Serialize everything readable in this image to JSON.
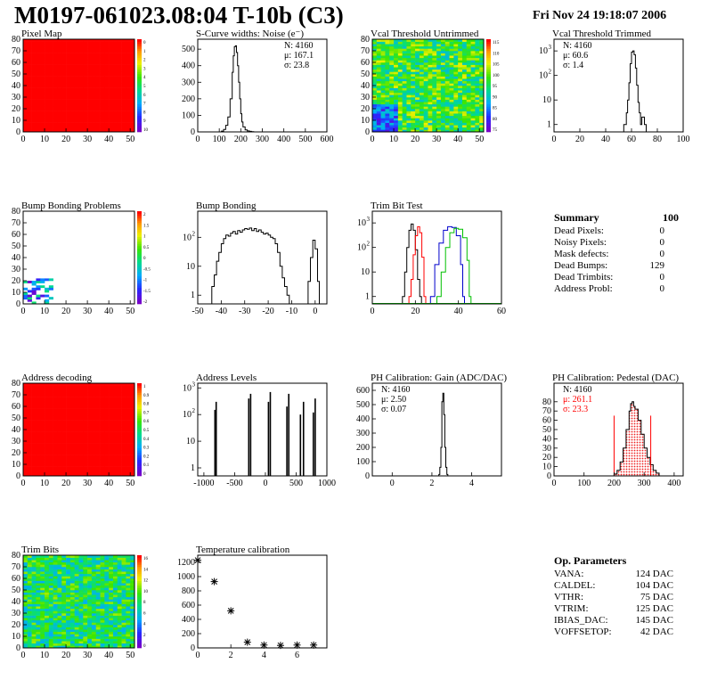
{
  "header": {
    "title": "M0197-061023.08:04 T-10b (C3)",
    "datetime": "Fri Nov 24 19:18:07 2006"
  },
  "colors": {
    "red": "#ff0000",
    "green": "#00c000",
    "blue": "#0000cc",
    "fill_hatch": "#ee2222"
  },
  "panels": [
    {
      "id": "pixel-map",
      "chart_data": {
        "type": "heatmap",
        "title": "Pixel Map",
        "xlim": [
          0,
          52
        ],
        "ylim": [
          0,
          80
        ],
        "xticks": [
          0,
          10,
          20,
          30,
          40,
          50
        ],
        "yticks": [
          0,
          10,
          20,
          30,
          40,
          50,
          60,
          70,
          80
        ],
        "uniform_value": 10,
        "zlim": [
          0,
          10
        ],
        "zticks": [
          "0",
          "1",
          "2",
          "3",
          "4",
          "5",
          "6",
          "7",
          "8",
          "9",
          "10"
        ]
      }
    },
    {
      "id": "scurve-widths",
      "chart_data": {
        "type": "line",
        "title": "S-Curve widths: Noise (e⁻)",
        "xlim": [
          0,
          600
        ],
        "ylim": [
          0,
          560
        ],
        "xticks": [
          0,
          100,
          200,
          300,
          400,
          500,
          600
        ],
        "yticks": [
          0,
          100,
          200,
          300,
          400,
          500
        ],
        "x": [
          100,
          110,
          120,
          130,
          140,
          150,
          160,
          165,
          170,
          175,
          180,
          185,
          190,
          195,
          200,
          205,
          210,
          220,
          230,
          240,
          250,
          260
        ],
        "y": [
          0,
          5,
          15,
          40,
          90,
          200,
          360,
          460,
          515,
          520,
          480,
          400,
          300,
          200,
          110,
          60,
          30,
          12,
          6,
          3,
          1,
          0
        ],
        "stats": {
          "n": "N: 4160",
          "mu": "μ: 167.1",
          "sigma": "σ: 23.8"
        }
      }
    },
    {
      "id": "vcal-untrimmed",
      "chart_data": {
        "type": "heatmap",
        "title": "Vcal Threshold Untrimmed",
        "xlim": [
          0,
          52
        ],
        "ylim": [
          0,
          80
        ],
        "xticks": [
          0,
          10,
          20,
          30,
          40,
          50
        ],
        "yticks": [
          0,
          10,
          20,
          30,
          40,
          50,
          60,
          70,
          80
        ],
        "zlim": [
          70,
          115
        ],
        "zticks": [
          "115",
          "110",
          "105",
          "100",
          "95",
          "90",
          "85",
          "80",
          "75"
        ],
        "typical_value": 95,
        "low_region": {
          "x": [
            0,
            12
          ],
          "y": [
            0,
            25
          ],
          "value": 80
        }
      }
    },
    {
      "id": "vcal-trimmed",
      "chart_data": {
        "type": "line",
        "title": "Vcal Threshold Trimmed",
        "log_y": true,
        "xlim": [
          0,
          100
        ],
        "ylim": [
          0.5,
          3000
        ],
        "xticks": [
          0,
          20,
          40,
          60,
          80,
          100
        ],
        "yticks": [
          1,
          10,
          100,
          1000
        ],
        "x": [
          54,
          56,
          57,
          58,
          59,
          60,
          61,
          62,
          63,
          64,
          65,
          66,
          67,
          68,
          70
        ],
        "y": [
          1,
          3,
          10,
          50,
          300,
          900,
          1000,
          700,
          200,
          40,
          8,
          3,
          1,
          2,
          1
        ],
        "stats": {
          "n": "N: 4160",
          "mu": "μ: 60.6",
          "sigma": "σ:  1.4"
        }
      }
    },
    {
      "id": "bump-bonding-problems",
      "chart_data": {
        "type": "heatmap",
        "title": "Bump Bonding Problems",
        "xlim": [
          0,
          52
        ],
        "ylim": [
          0,
          80
        ],
        "xticks": [
          0,
          10,
          20,
          30,
          40,
          50
        ],
        "yticks": [
          0,
          10,
          20,
          30,
          40,
          50,
          60,
          70,
          80
        ],
        "zlim": [
          -2,
          2
        ],
        "zticks": [
          "2",
          "1.5",
          "1",
          "0.5",
          "0",
          "-0.5",
          "-1",
          "-1.5",
          "-2"
        ],
        "cluster_region": {
          "x": [
            0,
            14
          ],
          "y": [
            0,
            23
          ]
        }
      }
    },
    {
      "id": "bump-bonding",
      "chart_data": {
        "type": "line",
        "title": "Bump Bonding",
        "log_y": true,
        "xlim": [
          -50,
          5
        ],
        "ylim": [
          0.5,
          800
        ],
        "xticks": [
          -50,
          -40,
          -30,
          -20,
          -10,
          0
        ],
        "yticks": [
          1,
          10,
          100
        ],
        "x": [
          -44,
          -43,
          -42,
          -41,
          -40,
          -39,
          -38,
          -37,
          -36,
          -35,
          -34,
          -33,
          -32,
          -31,
          -30,
          -29,
          -28,
          -27,
          -26,
          -25,
          -24,
          -23,
          -22,
          -21,
          -20,
          -19,
          -18,
          -17,
          -16,
          -15,
          -14,
          -13,
          -12,
          -11,
          -3,
          -2,
          -1,
          0,
          1
        ],
        "y": [
          2,
          5,
          15,
          30,
          60,
          90,
          120,
          110,
          140,
          160,
          130,
          170,
          150,
          180,
          200,
          190,
          210,
          170,
          200,
          160,
          180,
          150,
          130,
          140,
          120,
          100,
          90,
          60,
          30,
          10,
          4,
          2,
          1,
          0.5,
          3,
          20,
          80,
          40,
          3
        ]
      }
    },
    {
      "id": "trim-bit-test",
      "chart_data": {
        "type": "line",
        "title": "Trim Bit Test",
        "log_y": true,
        "xlim": [
          0,
          60
        ],
        "ylim": [
          0.5,
          3000
        ],
        "xticks": [
          0,
          20,
          40,
          60
        ],
        "yticks": [
          1,
          10,
          100,
          1000
        ],
        "series": [
          {
            "color": "#000000",
            "x": [
              14,
              15,
              16,
              17,
              18,
              19,
              20,
              21,
              22
            ],
            "y": [
              1,
              10,
              100,
              500,
              900,
              500,
              80,
              5,
              1
            ]
          },
          {
            "color": "#ff0000",
            "x": [
              17,
              18,
              19,
              20,
              21,
              22,
              23,
              24
            ],
            "y": [
              1,
              5,
              50,
              300,
              700,
              400,
              40,
              1
            ]
          },
          {
            "color": "#0000cc",
            "x": [
              27,
              29,
              31,
              33,
              35,
              37,
              39,
              41,
              42
            ],
            "y": [
              1,
              20,
              150,
              500,
              700,
              650,
              300,
              20,
              1
            ]
          },
          {
            "color": "#00c000",
            "x": [
              30,
              32,
              34,
              36,
              38,
              40,
              42,
              44,
              45
            ],
            "y": [
              1,
              10,
              100,
              400,
              600,
              550,
              250,
              30,
              1
            ]
          }
        ]
      }
    },
    {
      "id": "address-decoding",
      "chart_data": {
        "type": "heatmap",
        "title": "Address decoding",
        "xlim": [
          0,
          52
        ],
        "ylim": [
          0,
          80
        ],
        "xticks": [
          0,
          10,
          20,
          30,
          40,
          50
        ],
        "yticks": [
          0,
          10,
          20,
          30,
          40,
          50,
          60,
          70,
          80
        ],
        "uniform_value": 1,
        "zlim": [
          0,
          1
        ],
        "zticks": [
          "1",
          "0.9",
          "0.8",
          "0.7",
          "0.6",
          "0.5",
          "0.4",
          "0.3",
          "0.2",
          "0.1",
          "0"
        ]
      }
    },
    {
      "id": "address-levels",
      "chart_data": {
        "type": "bar",
        "title": "Address Levels",
        "log_y": true,
        "xlim": [
          -1100,
          1000
        ],
        "ylim": [
          0.5,
          1500
        ],
        "xticks": [
          -1000,
          -500,
          0,
          500,
          1000
        ],
        "yticks": [
          1,
          10,
          100,
          1000
        ],
        "x": [
          -820,
          -800,
          -270,
          -240,
          50,
          80,
          350,
          380,
          570,
          620,
          780,
          810
        ],
        "y": [
          150,
          300,
          400,
          600,
          300,
          700,
          200,
          600,
          100,
          300,
          120,
          400
        ]
      }
    },
    {
      "id": "ph-gain",
      "chart_data": {
        "type": "line",
        "title": "PH Calibration: Gain (ADC/DAC)",
        "xlim": [
          -1,
          5.5
        ],
        "ylim": [
          0,
          650
        ],
        "xticks": [
          0,
          2,
          4
        ],
        "yticks": [
          0,
          100,
          200,
          300,
          400,
          500,
          600
        ],
        "x": [
          2.3,
          2.35,
          2.4,
          2.45,
          2.5,
          2.55,
          2.6,
          2.65,
          2.7,
          2.75,
          2.8
        ],
        "y": [
          0,
          10,
          60,
          200,
          520,
          580,
          430,
          200,
          60,
          10,
          0
        ],
        "stats": {
          "n": "N: 4160",
          "mu": "μ: 2.50",
          "sigma": "σ: 0.07"
        }
      }
    },
    {
      "id": "ph-pedestal",
      "chart_data": {
        "type": "area",
        "title": "PH Calibration: Pedestal (DAC)",
        "xlim": [
          0,
          430
        ],
        "ylim": [
          0,
          100
        ],
        "xticks": [
          0,
          100,
          200,
          300,
          400
        ],
        "yticks": [
          0,
          10,
          20,
          30,
          40,
          50,
          60,
          70,
          80
        ],
        "x": [
          190,
          200,
          210,
          220,
          230,
          240,
          250,
          255,
          260,
          265,
          270,
          280,
          290,
          300,
          310,
          320,
          330,
          340,
          350
        ],
        "y": [
          0,
          2,
          6,
          15,
          30,
          50,
          70,
          78,
          80,
          75,
          72,
          60,
          45,
          30,
          20,
          12,
          6,
          3,
          0
        ],
        "marker_lines_x": [
          200,
          322
        ],
        "stats": {
          "n": "N: 4160",
          "mu": "μ: 261.1",
          "sigma": "σ: 23.3"
        }
      }
    },
    {
      "id": "trim-bits",
      "chart_data": {
        "type": "heatmap",
        "title": "Trim Bits",
        "xlim": [
          0,
          52
        ],
        "ylim": [
          0,
          80
        ],
        "xticks": [
          0,
          10,
          20,
          30,
          40,
          50
        ],
        "yticks": [
          0,
          10,
          20,
          30,
          40,
          50,
          60,
          70,
          80
        ],
        "zlim": [
          0,
          16
        ],
        "zticks": [
          "16",
          "14",
          "12",
          "10",
          "8",
          "6",
          "4",
          "2",
          "0"
        ],
        "typical_value": 8
      }
    },
    {
      "id": "temperature-calibration",
      "chart_data": {
        "type": "scatter",
        "title": "Temperature calibration",
        "xlim": [
          0,
          7.8
        ],
        "ylim": [
          0,
          1300
        ],
        "xticks": [
          0,
          2,
          4,
          6
        ],
        "yticks": [
          0,
          200,
          400,
          600,
          800,
          1000,
          1200
        ],
        "x": [
          0,
          1,
          2,
          3,
          4,
          5,
          6,
          7
        ],
        "y": [
          1230,
          930,
          520,
          80,
          40,
          35,
          40,
          40
        ]
      }
    }
  ],
  "summary": {
    "title": "Summary",
    "total": "100",
    "rows": [
      {
        "label": "Dead Pixels:",
        "value": "0"
      },
      {
        "label": "Noisy Pixels:",
        "value": "0"
      },
      {
        "label": "Mask defects:",
        "value": "0"
      },
      {
        "label": "Dead Bumps:",
        "value": "129"
      },
      {
        "label": "Dead Trimbits:",
        "value": "0"
      },
      {
        "label": "Address Probl:",
        "value": "0"
      }
    ]
  },
  "op_parameters": {
    "title": "Op. Parameters",
    "rows": [
      {
        "label": "VANA:",
        "value": "124 DAC"
      },
      {
        "label": "CALDEL:",
        "value": "104 DAC"
      },
      {
        "label": "VTHR:",
        "value": "75 DAC"
      },
      {
        "label": "VTRIM:",
        "value": "125 DAC"
      },
      {
        "label": "IBIAS_DAC:",
        "value": "145 DAC"
      },
      {
        "label": "VOFFSETOP:",
        "value": "42 DAC"
      }
    ]
  }
}
